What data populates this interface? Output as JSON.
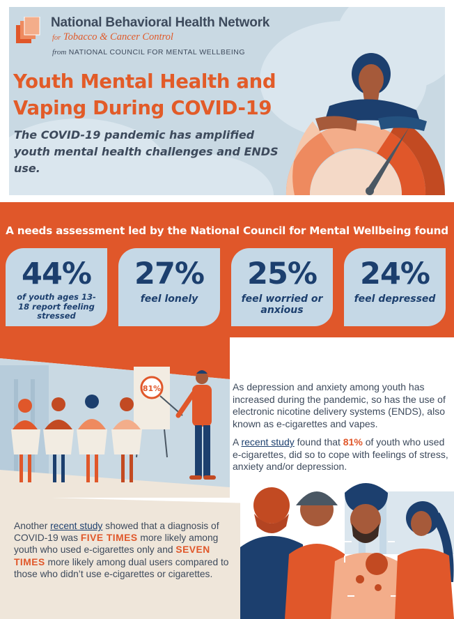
{
  "header": {
    "org_name": "National Behavioral Health Network",
    "org_sub_pre": "for",
    "org_sub": "Tobacco & Cancer Control",
    "org_from_pre": "from",
    "org_from": "NATIONAL COUNCIL FOR MENTAL WELLBEING"
  },
  "hero": {
    "title_line1": "Youth Mental Health and",
    "title_line2": "Vaping During COVID-19",
    "subtitle": "The COVID-19 pandemic has amplified youth mental health challenges and ENDS use."
  },
  "stats": {
    "heading": "A needs assessment led by the National Council for Mental Wellbeing found",
    "items": [
      {
        "value": "44%",
        "label": "of youth ages 13-18 report feeling stressed"
      },
      {
        "value": "27%",
        "label": "feel lonely"
      },
      {
        "value": "25%",
        "label": "feel worried or anxious"
      },
      {
        "value": "24%",
        "label": "feel depressed"
      }
    ]
  },
  "illustration": {
    "board_value": "81%"
  },
  "body": {
    "p1": "As depression and anxiety among youth has increased during the pandemic, so has the use of electronic nicotine delivery systems (ENDS), also known as e-cigarettes and vapes.",
    "p2_pre": "A",
    "p2_link": "recent study",
    "p2_mid": "found that",
    "p2_hl": "81%",
    "p2_post": "of youth who used e-cigarettes, did so to cope with feelings of stress, anxiety and/or depression.",
    "p3_pre": "Another",
    "p3_link": "recent study",
    "p3_a": "showed that a diagnosis of COVID-19 was",
    "p3_hl1": "FIVE TIMES",
    "p3_b": "more likely among youth who used e-cigarettes only and",
    "p3_hl2": "SEVEN TIMES",
    "p3_c": "more likely among dual users compared to those who didn’t use e-cigarettes or cigarettes."
  },
  "colors": {
    "orange": "#e0572a",
    "navy": "#1c3f6e",
    "slate": "#3d4a5c",
    "light_blue": "#c5d8e6",
    "beige": "#efe6da"
  }
}
